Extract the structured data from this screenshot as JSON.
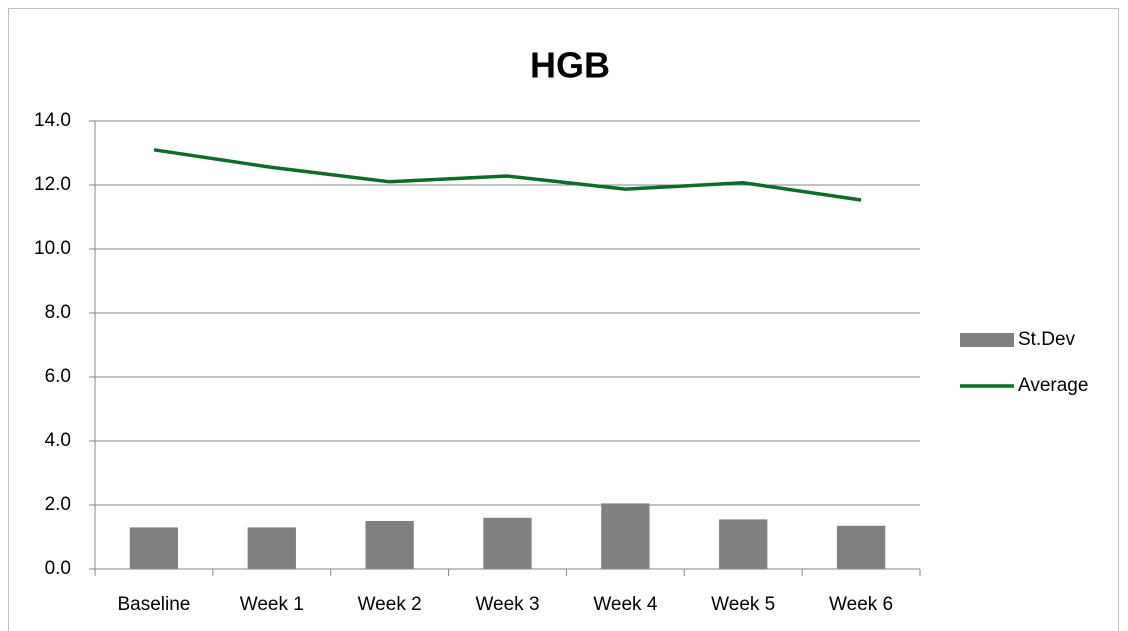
{
  "chart_data": {
    "type": "combo",
    "title": "HGB",
    "categories": [
      "Baseline",
      "Week 1",
      "Week 2",
      "Week 3",
      "Week 4",
      "Week 5",
      "Week 6"
    ],
    "series": [
      {
        "name": "St.Dev",
        "type": "bar",
        "color": "#808080",
        "values": [
          1.3,
          1.3,
          1.5,
          1.6,
          2.05,
          1.55,
          1.35
        ]
      },
      {
        "name": "Average",
        "type": "line",
        "color": "#0e6b2a",
        "values": [
          13.1,
          12.55,
          12.1,
          12.28,
          11.87,
          12.07,
          11.53
        ]
      }
    ],
    "ylim": [
      0,
      14
    ],
    "yticks": [
      {
        "value": 0,
        "label": "0.0"
      },
      {
        "value": 2,
        "label": "2.0"
      },
      {
        "value": 4,
        "label": "4.0"
      },
      {
        "value": 6,
        "label": "6.0"
      },
      {
        "value": 8,
        "label": "8.0"
      },
      {
        "value": 10,
        "label": "10.0"
      },
      {
        "value": 12,
        "label": "12.0"
      },
      {
        "value": 14,
        "label": "14.0"
      }
    ],
    "grid": true,
    "legend": "right"
  }
}
